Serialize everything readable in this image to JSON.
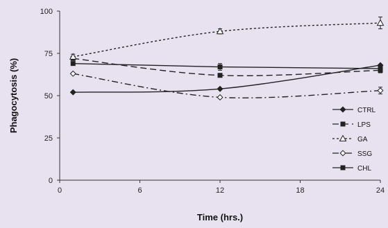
{
  "chart_data": {
    "type": "line",
    "title": "",
    "xlabel": "Time (hrs.)",
    "ylabel": "Phagocytosis (%)",
    "xlim": [
      0,
      24
    ],
    "ylim": [
      0,
      100
    ],
    "xticks": [
      0,
      6,
      12,
      18,
      24
    ],
    "yticks": [
      0,
      25,
      50,
      75,
      100
    ],
    "grid": false,
    "legend_position": "right",
    "series": [
      {
        "name": "CTRL",
        "x": [
          1,
          12,
          24
        ],
        "values": [
          52,
          54,
          68
        ],
        "marker": "diamond-filled",
        "dash": "solid",
        "smooth": true,
        "errors": [
          0,
          0,
          0
        ]
      },
      {
        "name": "LPS",
        "x": [
          1,
          12,
          24
        ],
        "values": [
          72,
          62,
          65
        ],
        "marker": "square-filled",
        "dash": "longdash",
        "smooth": true,
        "errors": [
          0,
          0,
          1.5
        ]
      },
      {
        "name": "GA",
        "x": [
          1,
          12,
          24
        ],
        "values": [
          73,
          88,
          93
        ],
        "marker": "triangle-open",
        "dash": "dotted",
        "smooth": true,
        "errors": [
          1.5,
          1.5,
          3.5
        ]
      },
      {
        "name": "SSG",
        "x": [
          1,
          12,
          24
        ],
        "values": [
          63,
          49,
          53
        ],
        "marker": "diamond-open",
        "dash": "dashdot",
        "smooth": true,
        "errors": [
          0,
          0,
          2
        ]
      },
      {
        "name": "CHL",
        "x": [
          1,
          12,
          24
        ],
        "values": [
          69,
          67,
          66
        ],
        "marker": "square-filled",
        "dash": "solid",
        "smooth": false,
        "errors": [
          0,
          2,
          1.5
        ]
      }
    ],
    "colors": {
      "background": "#e8e1f0",
      "line": "#222222",
      "axis": "#333333"
    }
  }
}
